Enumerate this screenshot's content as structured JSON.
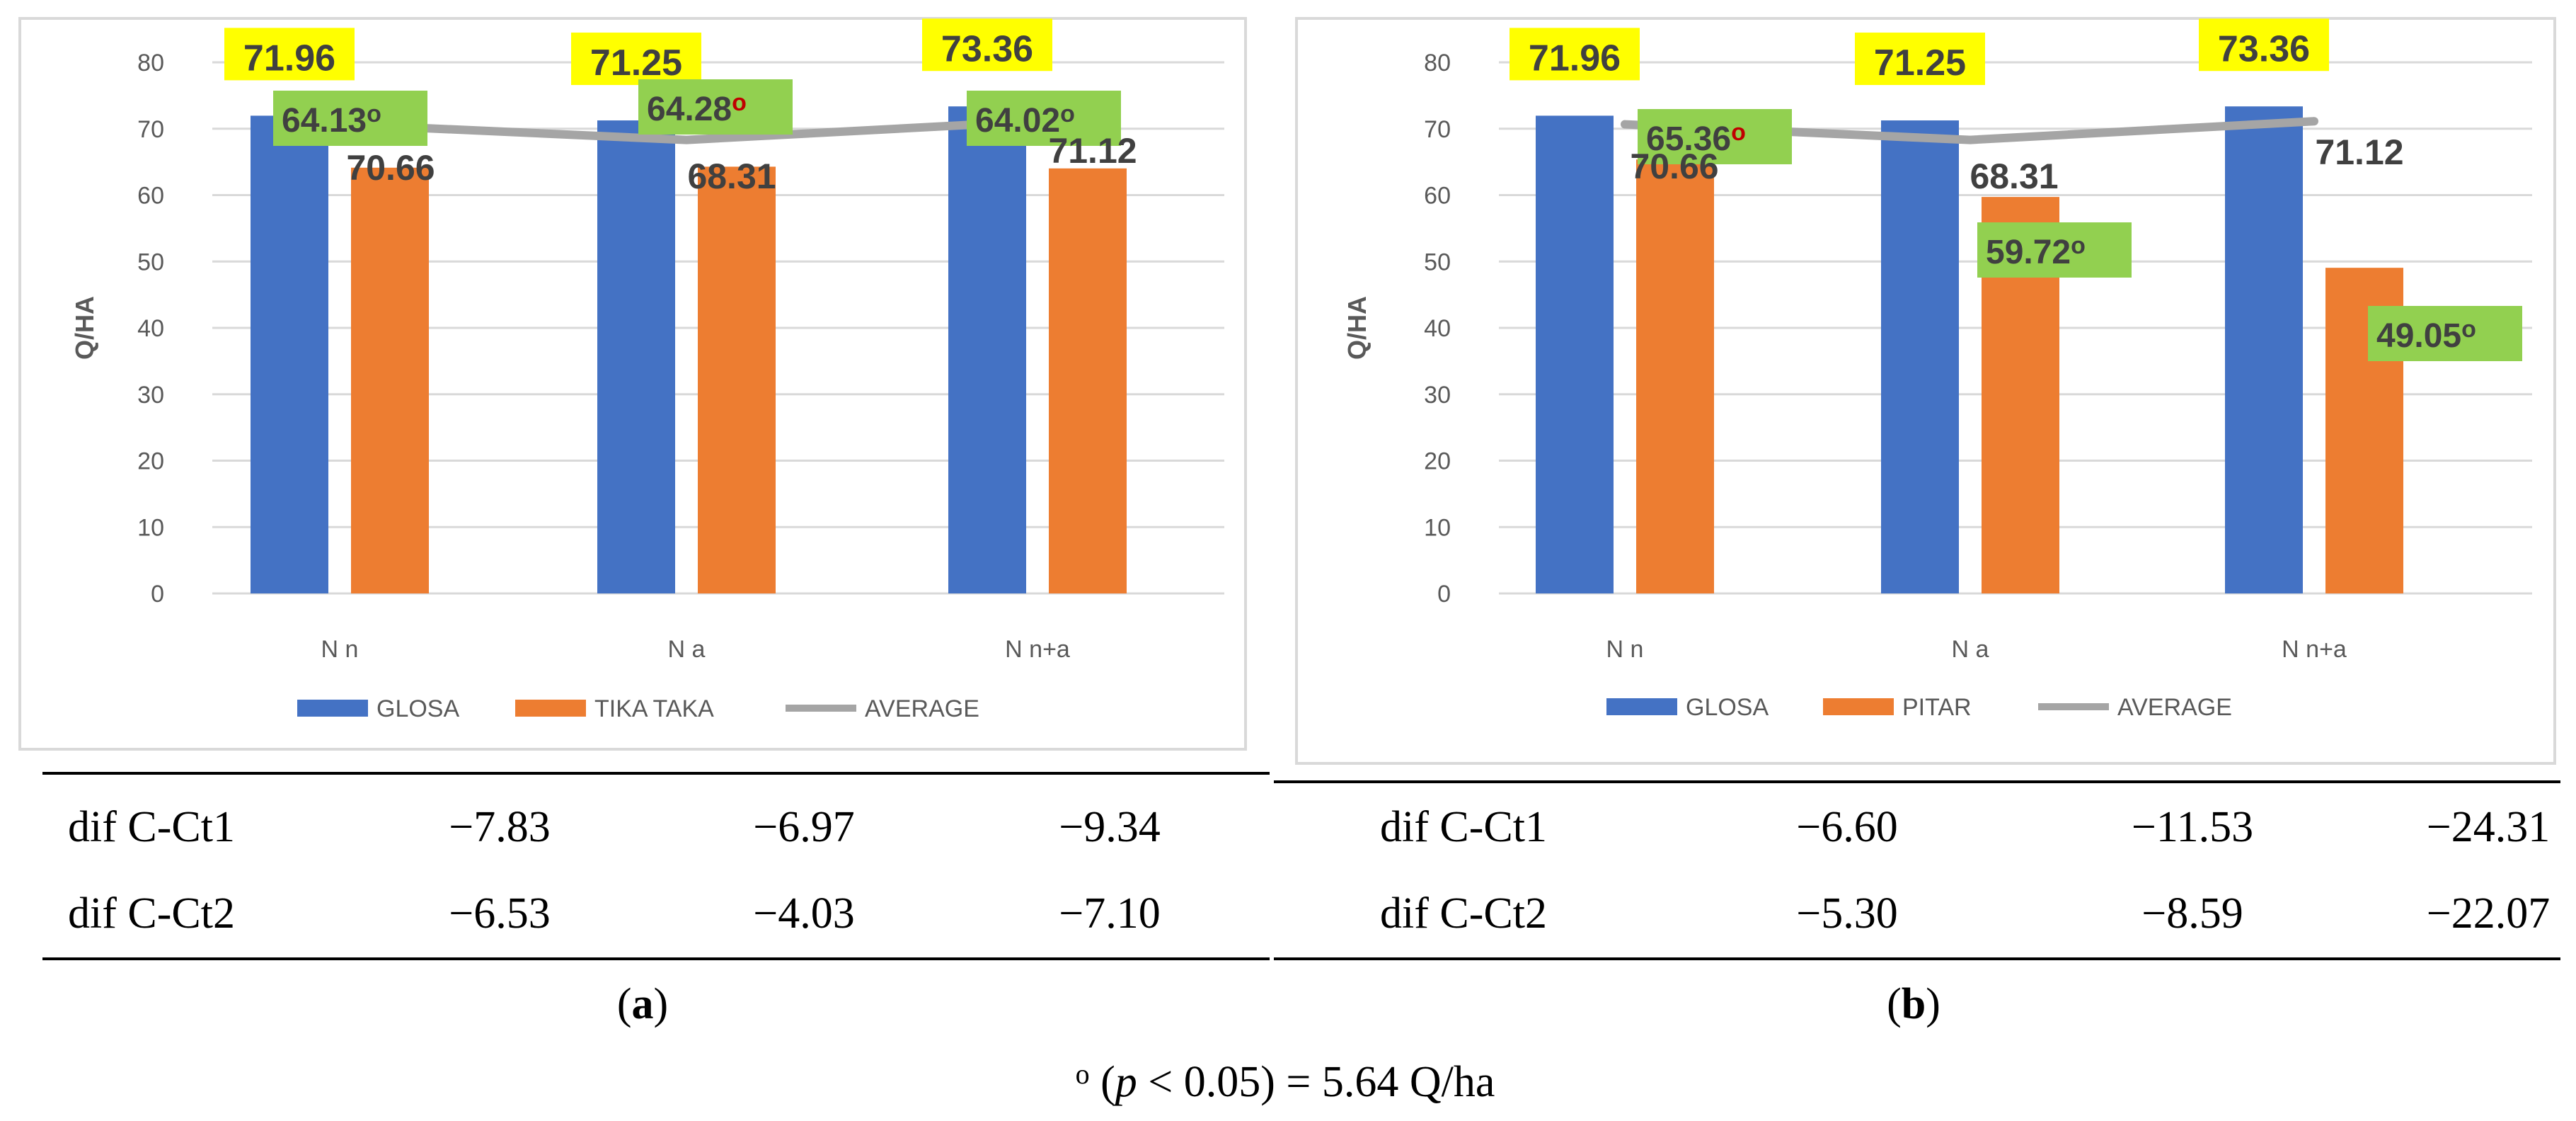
{
  "chart_data": [
    {
      "panel": "a",
      "type": "bar",
      "ylabel": "Q/HA",
      "ylim": [
        0,
        80
      ],
      "yticks": [
        0,
        10,
        20,
        30,
        40,
        50,
        60,
        70,
        80
      ],
      "categories": [
        "N n",
        "N a",
        "N n+a"
      ],
      "series": [
        {
          "name": "GLOSA",
          "kind": "bar",
          "color": "#4472c4",
          "values": [
            71.96,
            71.25,
            73.36
          ],
          "labels": [
            "71.96",
            "71.25",
            "73.36"
          ]
        },
        {
          "name": "TIKA TAKA",
          "kind": "bar",
          "color": "#ed7d31",
          "values": [
            64.13,
            64.28,
            64.02
          ],
          "labels": [
            "64.13",
            "64.28",
            "64.02"
          ],
          "sig_colors": [
            "#404040",
            "#c00000",
            "#404040"
          ]
        },
        {
          "name": "AVERAGE",
          "kind": "line",
          "color": "#a5a5a5",
          "values": [
            70.66,
            68.31,
            71.12
          ],
          "labels": [
            "70.66",
            "68.31",
            "71.12"
          ]
        }
      ],
      "legend": [
        "GLOSA",
        "TIKA TAKA",
        "AVERAGE"
      ],
      "sig_mark": "o",
      "table": {
        "rows": [
          {
            "label": "dif C-Ct1",
            "values": [
              "−7.83",
              "−6.97",
              "−9.34"
            ]
          },
          {
            "label": "dif C-Ct2",
            "values": [
              "−6.53",
              "−4.03",
              "−7.10"
            ]
          }
        ]
      },
      "caption": {
        "open": "(",
        "letter": "a",
        "close": ")"
      }
    },
    {
      "panel": "b",
      "type": "bar",
      "ylabel": "Q/HA",
      "ylim": [
        0,
        80
      ],
      "yticks": [
        0,
        10,
        20,
        30,
        40,
        50,
        60,
        70,
        80
      ],
      "categories": [
        "N n",
        "N a",
        "N n+a"
      ],
      "series": [
        {
          "name": "GLOSA",
          "kind": "bar",
          "color": "#4472c4",
          "values": [
            71.96,
            71.25,
            73.36
          ],
          "labels": [
            "71.96",
            "71.25",
            "73.36"
          ]
        },
        {
          "name": "PITAR",
          "kind": "bar",
          "color": "#ed7d31",
          "values": [
            65.36,
            59.72,
            49.05
          ],
          "labels": [
            "65.36",
            "59.72",
            "49.05"
          ],
          "sig_colors": [
            "#c00000",
            "#404040",
            "#404040"
          ]
        },
        {
          "name": "AVERAGE",
          "kind": "line",
          "color": "#a5a5a5",
          "values": [
            70.66,
            68.31,
            71.12
          ],
          "labels": [
            "70.66",
            "68.31",
            "71.12"
          ]
        }
      ],
      "legend": [
        "GLOSA",
        "PITAR",
        "AVERAGE"
      ],
      "sig_mark": "o",
      "table": {
        "rows": [
          {
            "label": "dif C-Ct1",
            "values": [
              "−6.60",
              "−11.53",
              "−24.31"
            ]
          },
          {
            "label": "dif C-Ct2",
            "values": [
              "−5.30",
              "−8.59",
              "−22.07"
            ]
          }
        ]
      },
      "caption": {
        "open": "(",
        "letter": "b",
        "close": ")"
      }
    }
  ],
  "footnote": {
    "mark": "o",
    "open": " (",
    "p": "p",
    "rest": " < 0.05) = 5.64 Q/ha"
  }
}
